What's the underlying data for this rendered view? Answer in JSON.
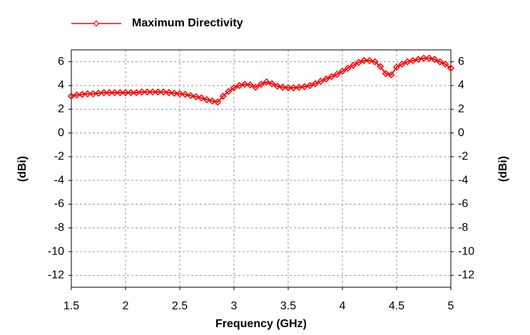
{
  "chart_data": {
    "type": "line",
    "xlabel": "Frequency (GHz)",
    "ylabel": "(dBi)",
    "x": [
      1.5,
      1.55,
      1.6,
      1.65,
      1.7,
      1.75,
      1.8,
      1.85,
      1.9,
      1.95,
      2.0,
      2.05,
      2.1,
      2.15,
      2.2,
      2.25,
      2.3,
      2.35,
      2.4,
      2.45,
      2.5,
      2.55,
      2.6,
      2.65,
      2.7,
      2.75,
      2.8,
      2.85,
      2.9,
      2.95,
      3.0,
      3.05,
      3.1,
      3.15,
      3.2,
      3.25,
      3.3,
      3.35,
      3.4,
      3.45,
      3.5,
      3.55,
      3.6,
      3.65,
      3.7,
      3.75,
      3.8,
      3.85,
      3.9,
      3.95,
      4.0,
      4.05,
      4.1,
      4.15,
      4.2,
      4.25,
      4.3,
      4.35,
      4.4,
      4.45,
      4.5,
      4.55,
      4.6,
      4.65,
      4.7,
      4.75,
      4.8,
      4.85,
      4.9,
      4.95,
      5.0
    ],
    "series": [
      {
        "name": "Maximum Directivity",
        "color": "#ff0000",
        "values": [
          3.1,
          3.2,
          3.25,
          3.3,
          3.3,
          3.35,
          3.4,
          3.4,
          3.4,
          3.4,
          3.4,
          3.4,
          3.4,
          3.45,
          3.45,
          3.45,
          3.45,
          3.45,
          3.4,
          3.35,
          3.3,
          3.25,
          3.15,
          3.05,
          2.95,
          2.8,
          2.7,
          2.6,
          3.1,
          3.5,
          3.8,
          4.0,
          4.1,
          4.05,
          3.85,
          4.1,
          4.3,
          4.15,
          3.95,
          3.85,
          3.8,
          3.8,
          3.85,
          3.9,
          4.0,
          4.15,
          4.35,
          4.55,
          4.75,
          4.95,
          5.2,
          5.45,
          5.7,
          5.95,
          6.1,
          6.1,
          6.0,
          5.6,
          5.0,
          4.9,
          5.55,
          5.8,
          6.0,
          6.1,
          6.2,
          6.3,
          6.3,
          6.2,
          6.0,
          5.8,
          5.45
        ]
      }
    ],
    "xlim": [
      1.5,
      5
    ],
    "xticks": [
      1.5,
      2,
      2.5,
      3,
      3.5,
      4,
      4.5,
      5
    ],
    "ylim": [
      -13,
      7
    ],
    "yticks": [
      -12,
      -10,
      -8,
      -6,
      -4,
      -2,
      0,
      2,
      4,
      6
    ],
    "grid": true
  }
}
